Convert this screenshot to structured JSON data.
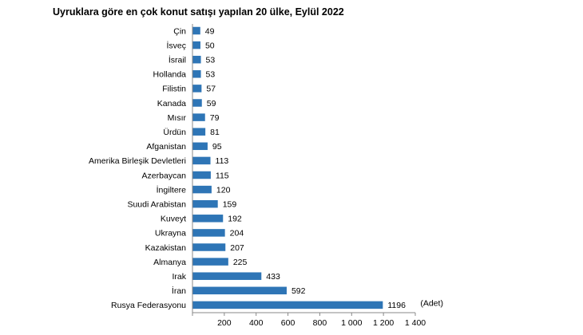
{
  "chart_data": {
    "type": "bar",
    "orientation": "horizontal",
    "title": "Uyruklara göre en çok konut satışı yapılan 20 ülke, Eylül 2022",
    "categories": [
      "Çin",
      "İsveç",
      "İsrail",
      "Hollanda",
      "Filistin",
      "Kanada",
      "Mısır",
      "Ürdün",
      "Afganistan",
      "Amerika Birleşik Devletleri",
      "Azerbaycan",
      "İngiltere",
      "Suudi Arabistan",
      "Kuveyt",
      "Ukrayna",
      "Kazakistan",
      "Almanya",
      "Irak",
      "İran",
      "Rusya Federasyonu"
    ],
    "values": [
      49,
      50,
      53,
      53,
      57,
      59,
      79,
      81,
      95,
      113,
      115,
      120,
      159,
      192,
      204,
      207,
      225,
      433,
      592,
      1196
    ],
    "value_labels": [
      "49",
      "50",
      "53",
      "53",
      "57",
      "59",
      "79",
      "81",
      "95",
      "113",
      "115",
      "120",
      "159",
      "192",
      "204",
      "207",
      "225",
      "433",
      "592",
      "1196"
    ],
    "unit_annotation": "(Adet)",
    "xlim": [
      0,
      1400
    ],
    "xticks": [
      200,
      400,
      600,
      800,
      1000,
      1200,
      1400
    ],
    "xtick_labels": [
      "200",
      "400",
      "600",
      "800",
      "1 000",
      "1 200",
      "1 400"
    ],
    "bar_color": "#2e75b6",
    "grid": false,
    "legend": "none"
  }
}
